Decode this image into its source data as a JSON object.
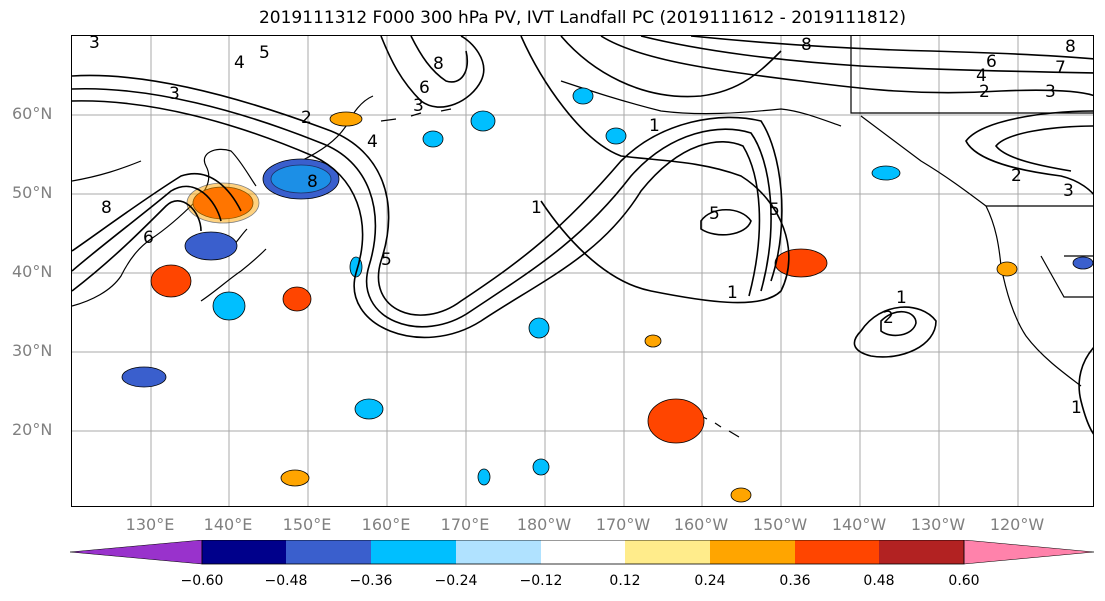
{
  "title": "2019111312 F000 300 hPa PV, IVT Landfall PC (2019111612 - 2019111812)",
  "map": {
    "lat_labels": [
      "60°N",
      "50°N",
      "40°N",
      "30°N",
      "20°N"
    ],
    "lon_labels": [
      "130°E",
      "140°E",
      "150°E",
      "160°E",
      "170°E",
      "180°W",
      "170°W",
      "160°W",
      "150°W",
      "140°W",
      "130°W",
      "120°W"
    ],
    "contour_labels": [
      "3",
      "5",
      "4",
      "3",
      "8",
      "8",
      "6",
      "5",
      "4",
      "3",
      "2",
      "1",
      "8",
      "6",
      "5",
      "1",
      "5",
      "1",
      "8",
      "1",
      "2",
      "3",
      "2",
      "1",
      "6",
      "4",
      "2",
      "7",
      "3",
      "8"
    ]
  },
  "colorbar": {
    "colors": [
      "#9932cc",
      "#00008b",
      "#3a5fcd",
      "#00bfff",
      "#b0e2ff",
      "#ffffff",
      "#ffec8b",
      "#ffa500",
      "#ff4500",
      "#b22222",
      "#ff82ab"
    ],
    "labels": [
      "−0.60",
      "−0.48",
      "−0.36",
      "−0.24",
      "−0.12",
      "0.12",
      "0.24",
      "0.36",
      "0.48",
      "0.60"
    ]
  }
}
